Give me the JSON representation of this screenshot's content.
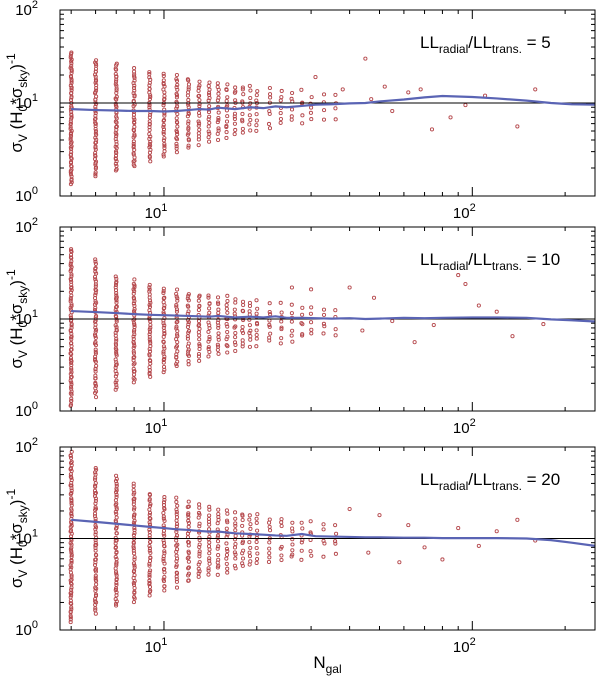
{
  "chart_data": [
    {
      "type": "scatter",
      "title": "",
      "annotation": {
        "base": "LL",
        "sub1": "radial",
        "sep": "/LL",
        "sub2": "trans.",
        "tail": " = 5"
      },
      "ratio": 5,
      "ylabel": {
        "sigma": "σ",
        "sub_v": "V",
        "paren_open": " (H",
        "sub_0": "0",
        "star": "*σ",
        "sub_sky": "sky",
        "close": ")",
        "sup": "-1"
      },
      "xlabel": "",
      "x_scale": "log",
      "y_scale": "log",
      "xlim": [
        4.6,
        250
      ],
      "ylim": [
        1,
        100
      ],
      "x_tick_labels": [
        {
          "base": "10",
          "exp": "1"
        },
        {
          "base": "10",
          "exp": "2"
        }
      ],
      "y_tick_labels": [
        {
          "base": "10",
          "exp": "0"
        },
        {
          "base": "10",
          "exp": "1"
        },
        {
          "base": "10",
          "exp": "2"
        }
      ],
      "reference_line": 10,
      "mean_curve": {
        "x": [
          5,
          6,
          7,
          8,
          9,
          10,
          11,
          12,
          13,
          14,
          15,
          17,
          19,
          21,
          23,
          25,
          28,
          31,
          35,
          40,
          45,
          50,
          60,
          70,
          80,
          100,
          120,
          150,
          180,
          210,
          250
        ],
        "y": [
          8.6,
          8.4,
          8.3,
          8.2,
          8.2,
          8.1,
          8.2,
          8.4,
          8.6,
          8.5,
          8.9,
          8.6,
          9.0,
          8.8,
          9.2,
          9.0,
          9.3,
          9.6,
          9.7,
          9.9,
          10.0,
          10.4,
          10.9,
          11.5,
          11.9,
          11.6,
          11.2,
          10.6,
          10.0,
          9.7,
          9.6
        ]
      },
      "scatter": {
        "columns": [
          {
            "n": 5,
            "lo": 1.3,
            "hi": 36,
            "count": 70
          },
          {
            "n": 6,
            "lo": 1.6,
            "hi": 30,
            "count": 55
          },
          {
            "n": 7,
            "lo": 1.8,
            "hi": 27,
            "count": 48
          },
          {
            "n": 8,
            "lo": 2.0,
            "hi": 24,
            "count": 42
          },
          {
            "n": 9,
            "lo": 2.3,
            "hi": 22,
            "count": 36
          },
          {
            "n": 10,
            "lo": 2.6,
            "hi": 21,
            "count": 32
          },
          {
            "n": 11,
            "lo": 2.9,
            "hi": 20,
            "count": 28
          },
          {
            "n": 12,
            "lo": 3.2,
            "hi": 19,
            "count": 24
          },
          {
            "n": 13,
            "lo": 3.5,
            "hi": 18,
            "count": 20
          },
          {
            "n": 14,
            "lo": 3.8,
            "hi": 18,
            "count": 18
          },
          {
            "n": 15,
            "lo": 4.0,
            "hi": 17,
            "count": 16
          },
          {
            "n": 16,
            "lo": 4.2,
            "hi": 17,
            "count": 14
          },
          {
            "n": 17,
            "lo": 4.4,
            "hi": 16,
            "count": 12
          },
          {
            "n": 18,
            "lo": 4.6,
            "hi": 16,
            "count": 11
          },
          {
            "n": 19,
            "lo": 4.8,
            "hi": 16,
            "count": 10
          },
          {
            "n": 20,
            "lo": 5.0,
            "hi": 15,
            "count": 9
          },
          {
            "n": 22,
            "lo": 5.2,
            "hi": 15,
            "count": 8
          },
          {
            "n": 24,
            "lo": 5.5,
            "hi": 14,
            "count": 7
          },
          {
            "n": 26,
            "lo": 5.8,
            "hi": 14,
            "count": 6
          },
          {
            "n": 28,
            "lo": 6.0,
            "hi": 14,
            "count": 5
          },
          {
            "n": 30,
            "lo": 6.2,
            "hi": 13,
            "count": 5
          },
          {
            "n": 33,
            "lo": 6.4,
            "hi": 13,
            "count": 4
          },
          {
            "n": 36,
            "lo": 6.6,
            "hi": 13,
            "count": 4
          }
        ],
        "outliers": [
          [
            31,
            19
          ],
          [
            38,
            14
          ],
          [
            45,
            30
          ],
          [
            47,
            11
          ],
          [
            52,
            15
          ],
          [
            55,
            8.2
          ],
          [
            62,
            13
          ],
          [
            68,
            14
          ],
          [
            74,
            5.2
          ],
          [
            85,
            7.0
          ],
          [
            95,
            9.5
          ],
          [
            110,
            12
          ],
          [
            140,
            5.6
          ],
          [
            160,
            14
          ]
        ]
      }
    },
    {
      "type": "scatter",
      "title": "",
      "annotation": {
        "base": "LL",
        "sub1": "radial",
        "sep": "/LL",
        "sub2": "trans.",
        "tail": " = 10"
      },
      "ratio": 10,
      "ylabel": {
        "sigma": "σ",
        "sub_v": "V",
        "paren_open": " (H",
        "sub_0": "0",
        "star": "*σ",
        "sub_sky": "sky",
        "close": ")",
        "sup": "-1"
      },
      "xlabel": "",
      "x_scale": "log",
      "y_scale": "log",
      "xlim": [
        4.6,
        250
      ],
      "ylim": [
        1,
        100
      ],
      "x_tick_labels": [
        {
          "base": "10",
          "exp": "1"
        },
        {
          "base": "10",
          "exp": "2"
        }
      ],
      "y_tick_labels": [
        {
          "base": "10",
          "exp": "0"
        },
        {
          "base": "10",
          "exp": "1"
        },
        {
          "base": "10",
          "exp": "2"
        }
      ],
      "reference_line": 10,
      "mean_curve": {
        "x": [
          5,
          6,
          7,
          8,
          9,
          10,
          11,
          12,
          13,
          14,
          15,
          17,
          19,
          21,
          23,
          25,
          28,
          31,
          35,
          40,
          45,
          50,
          60,
          70,
          80,
          100,
          120,
          150,
          180,
          210,
          250
        ],
        "y": [
          12.2,
          11.9,
          11.6,
          11.3,
          11.1,
          11.0,
          10.9,
          10.8,
          10.7,
          10.6,
          10.8,
          10.4,
          10.6,
          10.4,
          10.7,
          10.3,
          10.3,
          10.2,
          10.1,
          10.2,
          10.0,
          10.1,
          10.3,
          10.2,
          10.3,
          10.4,
          10.4,
          10.3,
          9.9,
          9.7,
          9.4
        ]
      },
      "scatter": {
        "columns": [
          {
            "n": 5,
            "lo": 1.1,
            "hi": 60,
            "count": 75
          },
          {
            "n": 6,
            "lo": 1.4,
            "hi": 45,
            "count": 58
          },
          {
            "n": 7,
            "lo": 1.7,
            "hi": 30,
            "count": 50
          },
          {
            "n": 8,
            "lo": 2.0,
            "hi": 27,
            "count": 44
          },
          {
            "n": 9,
            "lo": 2.3,
            "hi": 24,
            "count": 38
          },
          {
            "n": 10,
            "lo": 2.6,
            "hi": 22,
            "count": 33
          },
          {
            "n": 11,
            "lo": 2.9,
            "hi": 21,
            "count": 29
          },
          {
            "n": 12,
            "lo": 3.2,
            "hi": 20,
            "count": 25
          },
          {
            "n": 13,
            "lo": 3.5,
            "hi": 19,
            "count": 21
          },
          {
            "n": 14,
            "lo": 3.8,
            "hi": 19,
            "count": 19
          },
          {
            "n": 15,
            "lo": 4.0,
            "hi": 18,
            "count": 17
          },
          {
            "n": 16,
            "lo": 4.2,
            "hi": 18,
            "count": 15
          },
          {
            "n": 17,
            "lo": 4.4,
            "hi": 17,
            "count": 13
          },
          {
            "n": 18,
            "lo": 4.6,
            "hi": 17,
            "count": 12
          },
          {
            "n": 19,
            "lo": 4.8,
            "hi": 16,
            "count": 11
          },
          {
            "n": 20,
            "lo": 5.0,
            "hi": 16,
            "count": 10
          },
          {
            "n": 22,
            "lo": 5.2,
            "hi": 15,
            "count": 9
          },
          {
            "n": 24,
            "lo": 5.4,
            "hi": 15,
            "count": 8
          },
          {
            "n": 26,
            "lo": 5.6,
            "hi": 15,
            "count": 7
          },
          {
            "n": 28,
            "lo": 5.8,
            "hi": 14,
            "count": 6
          },
          {
            "n": 30,
            "lo": 6.0,
            "hi": 14,
            "count": 5
          },
          {
            "n": 33,
            "lo": 6.2,
            "hi": 14,
            "count": 5
          },
          {
            "n": 36,
            "lo": 6.5,
            "hi": 13,
            "count": 4
          }
        ],
        "outliers": [
          [
            26,
            22
          ],
          [
            30,
            21
          ],
          [
            40,
            22
          ],
          [
            44,
            7.5
          ],
          [
            48,
            17
          ],
          [
            55,
            9.5
          ],
          [
            65,
            5.6
          ],
          [
            75,
            8.6
          ],
          [
            90,
            30
          ],
          [
            95,
            24
          ],
          [
            105,
            14
          ],
          [
            120,
            12
          ],
          [
            135,
            6.5
          ],
          [
            170,
            8.8
          ]
        ]
      }
    },
    {
      "type": "scatter",
      "title": "",
      "annotation": {
        "base": "LL",
        "sub1": "radial",
        "sep": "/LL",
        "sub2": "trans.",
        "tail": " = 20"
      },
      "ratio": 20,
      "ylabel": {
        "sigma": "σ",
        "sub_v": "V",
        "paren_open": " (H",
        "sub_0": "0",
        "star": "*σ",
        "sub_sky": "sky",
        "close": ")",
        "sup": "-1"
      },
      "xlabel": {
        "base": "N",
        "sub": "gal"
      },
      "x_scale": "log",
      "y_scale": "log",
      "xlim": [
        4.6,
        250
      ],
      "ylim": [
        1,
        100
      ],
      "x_tick_labels": [
        {
          "base": "10",
          "exp": "1"
        },
        {
          "base": "10",
          "exp": "2"
        }
      ],
      "y_tick_labels": [
        {
          "base": "10",
          "exp": "0"
        },
        {
          "base": "10",
          "exp": "1"
        },
        {
          "base": "10",
          "exp": "2"
        }
      ],
      "reference_line": 10,
      "mean_curve": {
        "x": [
          5,
          6,
          7,
          8,
          9,
          10,
          11,
          12,
          13,
          14,
          15,
          17,
          19,
          21,
          23,
          25,
          28,
          31,
          35,
          40,
          45,
          50,
          60,
          70,
          80,
          100,
          120,
          150,
          180,
          210,
          250
        ],
        "y": [
          16.0,
          15.2,
          14.5,
          13.9,
          13.4,
          13.0,
          12.6,
          12.4,
          12.1,
          11.9,
          11.9,
          11.4,
          11.2,
          11.0,
          10.8,
          10.7,
          11.2,
          10.6,
          10.5,
          10.4,
          10.3,
          10.3,
          10.2,
          10.2,
          10.1,
          10.1,
          10.1,
          10.0,
          9.6,
          9.0,
          8.3
        ]
      },
      "scatter": {
        "columns": [
          {
            "n": 5,
            "lo": 1.2,
            "hi": 90,
            "count": 80
          },
          {
            "n": 6,
            "lo": 1.5,
            "hi": 60,
            "count": 62
          },
          {
            "n": 7,
            "lo": 1.8,
            "hi": 50,
            "count": 54
          },
          {
            "n": 8,
            "lo": 2.0,
            "hi": 40,
            "count": 46
          },
          {
            "n": 9,
            "lo": 2.3,
            "hi": 32,
            "count": 40
          },
          {
            "n": 10,
            "lo": 2.6,
            "hi": 30,
            "count": 34
          },
          {
            "n": 11,
            "lo": 2.9,
            "hi": 28,
            "count": 30
          },
          {
            "n": 12,
            "lo": 3.2,
            "hi": 26,
            "count": 26
          },
          {
            "n": 13,
            "lo": 3.5,
            "hi": 24,
            "count": 22
          },
          {
            "n": 14,
            "lo": 3.8,
            "hi": 23,
            "count": 20
          },
          {
            "n": 15,
            "lo": 4.0,
            "hi": 22,
            "count": 18
          },
          {
            "n": 16,
            "lo": 4.2,
            "hi": 21,
            "count": 16
          },
          {
            "n": 17,
            "lo": 4.4,
            "hi": 20,
            "count": 14
          },
          {
            "n": 18,
            "lo": 4.6,
            "hi": 20,
            "count": 13
          },
          {
            "n": 19,
            "lo": 4.8,
            "hi": 19,
            "count": 12
          },
          {
            "n": 20,
            "lo": 5.0,
            "hi": 19,
            "count": 11
          },
          {
            "n": 22,
            "lo": 5.2,
            "hi": 18,
            "count": 10
          },
          {
            "n": 24,
            "lo": 5.4,
            "hi": 18,
            "count": 9
          },
          {
            "n": 26,
            "lo": 5.6,
            "hi": 17,
            "count": 8
          },
          {
            "n": 28,
            "lo": 5.8,
            "hi": 17,
            "count": 7
          },
          {
            "n": 30,
            "lo": 6.0,
            "hi": 16,
            "count": 6
          },
          {
            "n": 33,
            "lo": 6.2,
            "hi": 16,
            "count": 5
          },
          {
            "n": 36,
            "lo": 6.5,
            "hi": 15,
            "count": 5
          }
        ],
        "outliers": [
          [
            40,
            21
          ],
          [
            46,
            7.0
          ],
          [
            50,
            18
          ],
          [
            58,
            5.5
          ],
          [
            62,
            14
          ],
          [
            70,
            8.0
          ],
          [
            80,
            5.9
          ],
          [
            90,
            13
          ],
          [
            105,
            8.3
          ],
          [
            120,
            12
          ],
          [
            140,
            16
          ],
          [
            160,
            9.5
          ]
        ]
      }
    }
  ]
}
